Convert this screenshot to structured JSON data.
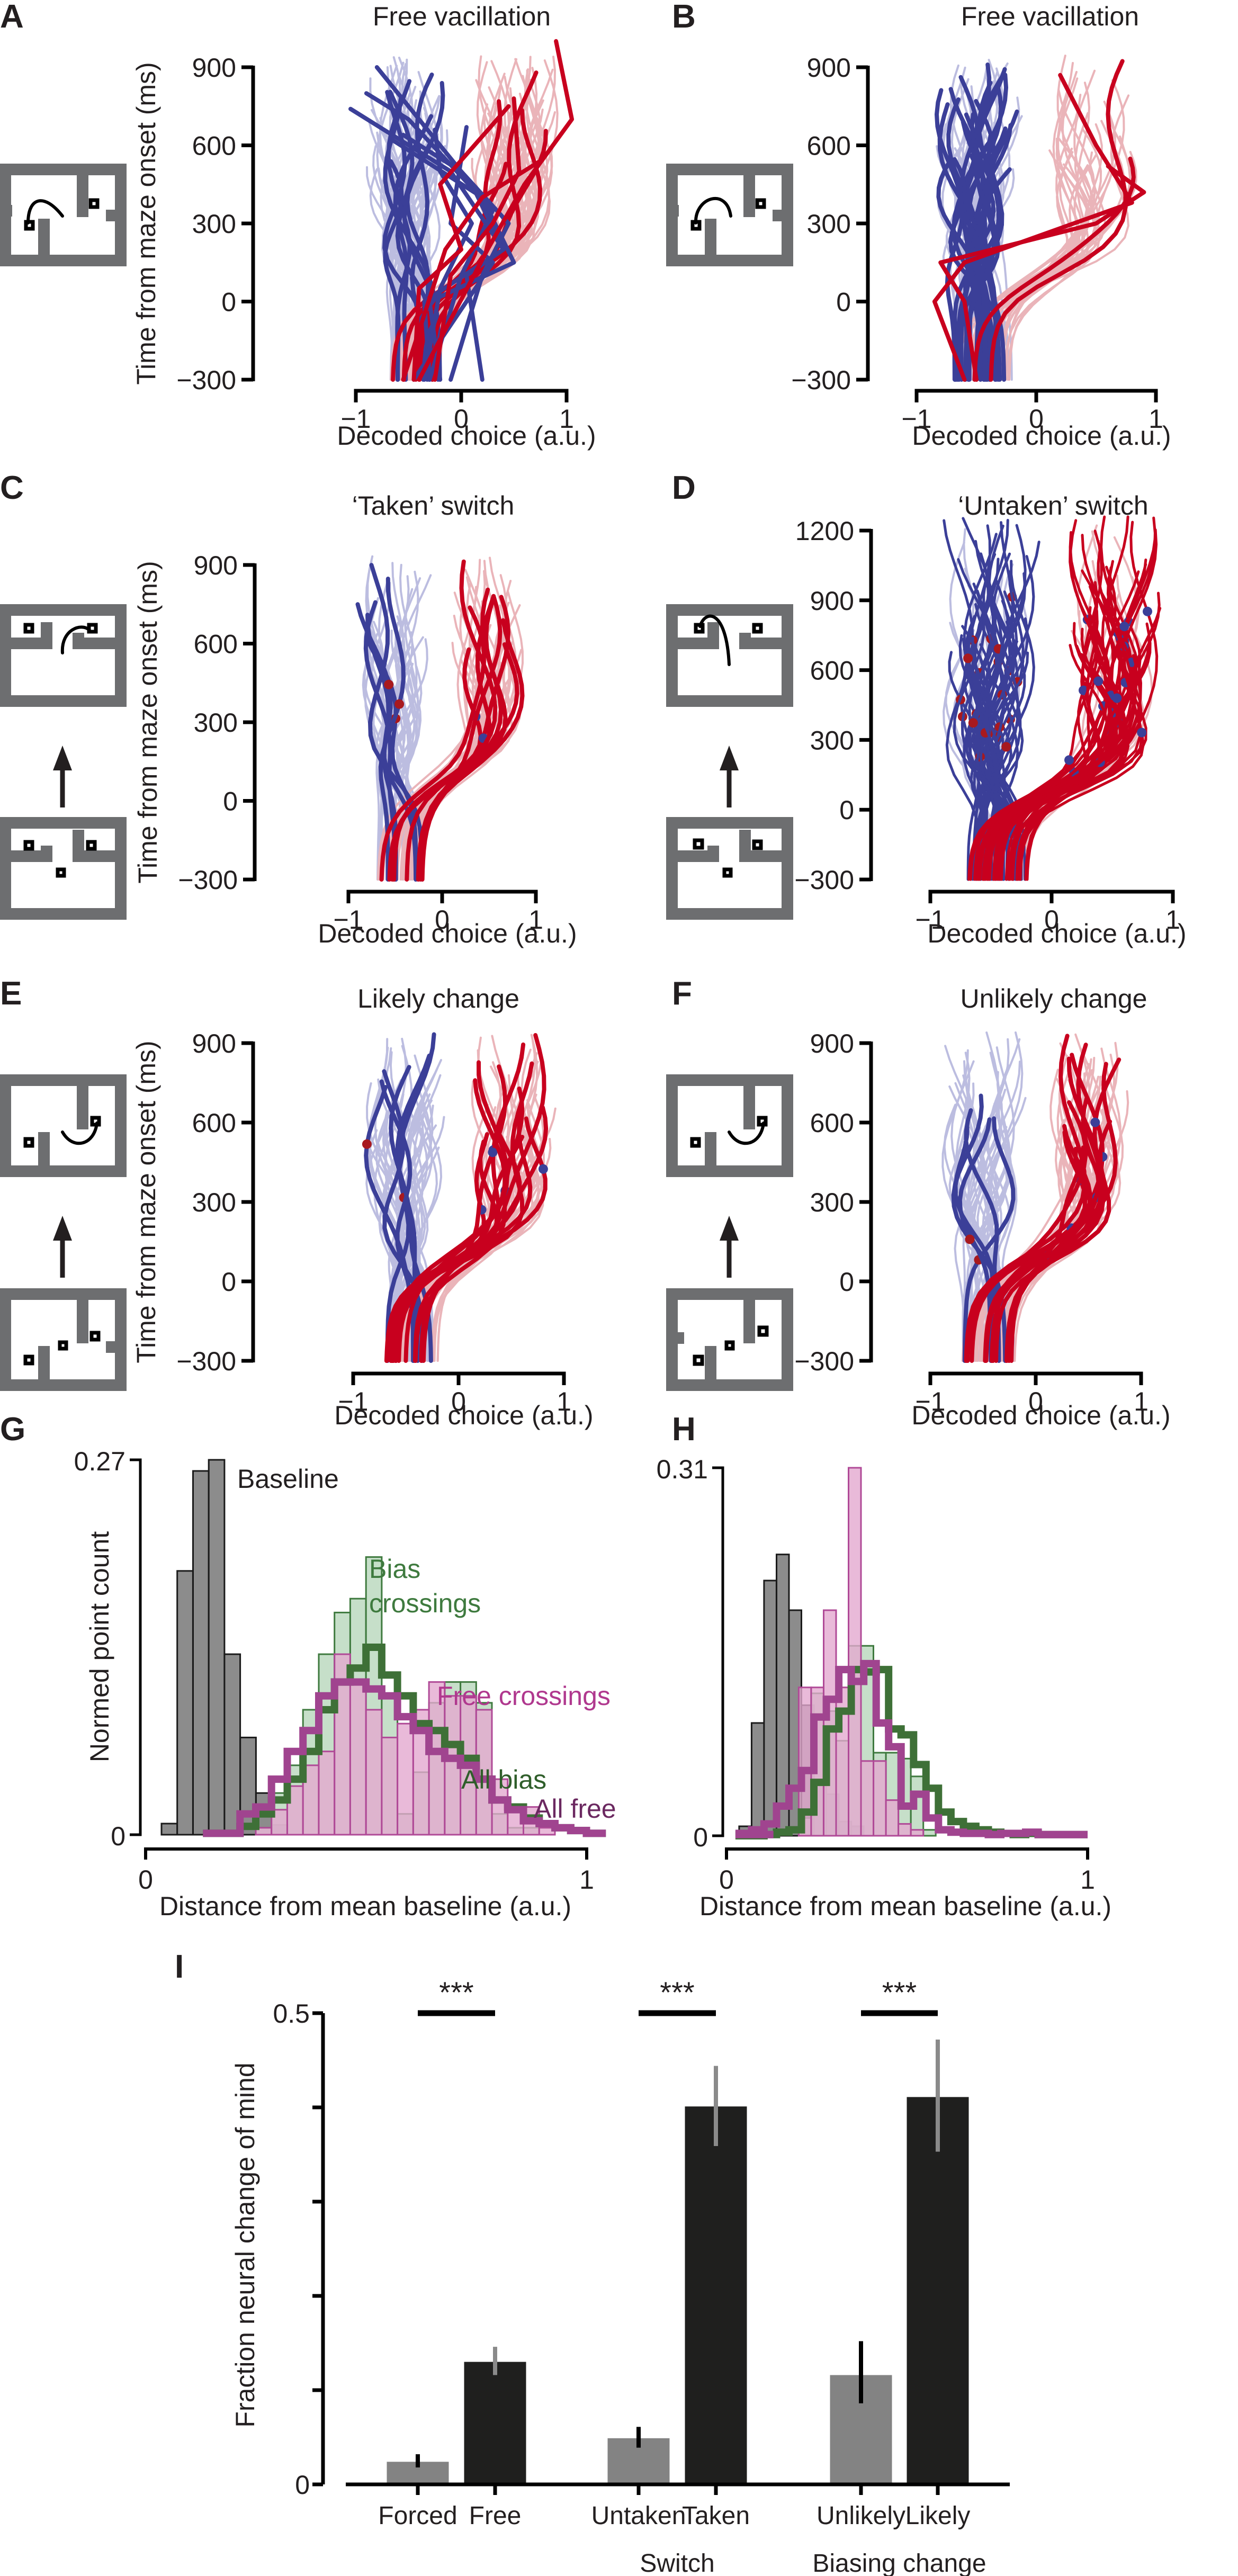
{
  "figure": {
    "colors": {
      "left_strong": "#3b3f98",
      "left_faint": "#bcbde0",
      "right_strong": "#c8001e",
      "right_faint": "#eab4b9",
      "crossing_dot_red": "#a8191e",
      "crossing_dot_blue": "#3b3f98",
      "baseline_fill": "#8c8c8c",
      "bias_fill": "#bcd9c0",
      "bias_edge": "#3f7a3f",
      "free_fill": "#e3a9cf",
      "free_edge": "#b04a97",
      "all_bias_line": "#3e7037",
      "all_free_line": "#a0448f",
      "all_free_label": "#6b2860",
      "bar_gray": "#838383",
      "bar_black": "#1f1f1e",
      "err_gray": "#8a8a8a",
      "err_black": "#000000"
    }
  },
  "chart_data": [
    {
      "id": "A",
      "type": "line",
      "panel_letter": "A",
      "title": "Free vacillation",
      "xlabel": "Decoded choice (a.u.)",
      "ylabel": "Time from maze onset (ms)",
      "xlim": [
        -1,
        1
      ],
      "ylim": [
        -300,
        900
      ],
      "xticks": [
        "−1",
        "0",
        "1"
      ],
      "yticks": [
        "900",
        "600",
        "300",
        "0",
        "−300"
      ],
      "maze": "free-vacillation-maze",
      "series_summary": {
        "faint_left_count": 60,
        "faint_right_count": 60,
        "strong_left_count": 9,
        "strong_right_count": 5
      },
      "highlight_traces": {
        "blue": [
          [
            [
              -0.3,
              -300
            ],
            [
              -0.35,
              0
            ],
            [
              0.4,
              200
            ],
            [
              0.1,
              450
            ],
            [
              -0.8,
              900
            ]
          ],
          [
            [
              -0.2,
              -300
            ],
            [
              -0.3,
              0
            ],
            [
              0.5,
              150
            ],
            [
              0.2,
              400
            ],
            [
              -0.65,
              620
            ]
          ],
          [
            [
              -0.1,
              -300
            ],
            [
              0.2,
              100
            ],
            [
              0.45,
              300
            ],
            [
              0.0,
              500
            ],
            [
              -0.55,
              640
            ]
          ],
          [
            [
              0.2,
              -300
            ],
            [
              0.05,
              100
            ],
            [
              0.4,
              200
            ],
            [
              -0.1,
              500
            ],
            [
              -1.05,
              740
            ]
          ],
          [
            [
              -0.35,
              -300
            ],
            [
              -0.2,
              50
            ],
            [
              0.1,
              300
            ],
            [
              -0.2,
              500
            ],
            [
              -0.25,
              660
            ]
          ],
          [
            [
              -0.45,
              -300
            ],
            [
              0.3,
              150
            ],
            [
              -0.1,
              300
            ],
            [
              0.05,
              670
            ]
          ],
          [
            [
              -0.3,
              -300
            ],
            [
              0.0,
              100
            ],
            [
              0.3,
              350
            ],
            [
              -0.5,
              700
            ],
            [
              -0.9,
              800
            ]
          ]
        ],
        "red": [
          [
            [
              -0.45,
              -300
            ],
            [
              -0.4,
              50
            ],
            [
              0.0,
              200
            ],
            [
              -0.2,
              450
            ],
            [
              0.45,
              750
            ]
          ],
          [
            [
              -0.25,
              -300
            ],
            [
              -0.1,
              100
            ],
            [
              0.3,
              300
            ],
            [
              0.55,
              500
            ],
            [
              0.5,
              780
            ]
          ],
          [
            [
              -0.55,
              -300
            ],
            [
              -0.15,
              200
            ],
            [
              0.2,
              400
            ],
            [
              0.75,
              540
            ]
          ],
          [
            [
              -0.4,
              -300
            ],
            [
              0.25,
              200
            ],
            [
              0.6,
              450
            ],
            [
              1.05,
              700
            ],
            [
              0.9,
              1000
            ]
          ]
        ]
      }
    },
    {
      "id": "B",
      "type": "line",
      "panel_letter": "B",
      "title": "Free vacillation",
      "xlabel": "Decoded choice (a.u.)",
      "ylabel": "",
      "xlim": [
        -1,
        1
      ],
      "ylim": [
        -300,
        900
      ],
      "xticks": [
        "−1",
        "0",
        "1"
      ],
      "yticks": [
        "900",
        "600",
        "300",
        "0",
        "−300"
      ],
      "maze": "free-vacillation-maze",
      "series_summary": {
        "faint_left_count": 40,
        "faint_right_count": 30,
        "strong_left_count": 24,
        "strong_right_count": 2
      },
      "highlight_traces": {
        "red": [
          [
            [
              -0.6,
              -300
            ],
            [
              -0.85,
              0
            ],
            [
              -0.6,
              150
            ],
            [
              0.8,
              380
            ],
            [
              0.5,
              600
            ],
            [
              0.2,
              870
            ]
          ],
          [
            [
              -0.5,
              -300
            ],
            [
              -0.6,
              0
            ],
            [
              -0.8,
              150
            ],
            [
              0.5,
              300
            ],
            [
              0.9,
              420
            ],
            [
              0.6,
              520
            ]
          ]
        ]
      }
    },
    {
      "id": "C",
      "type": "line",
      "panel_letter": "C",
      "title": "‘Taken’ switch",
      "xlabel": "Decoded choice (a.u.)",
      "ylabel": "Time from maze onset (ms)",
      "xlim": [
        -1,
        1
      ],
      "ylim": [
        -300,
        900
      ],
      "xticks": [
        "−1",
        "0",
        "1"
      ],
      "yticks": [
        "900",
        "600",
        "300",
        "0",
        "−300"
      ],
      "maze": "taken-switch-maze",
      "series_summary": {
        "faint_left_count": 35,
        "faint_right_count": 35,
        "strong_left_count": 6,
        "strong_right_count": 10
      }
    },
    {
      "id": "D",
      "type": "line",
      "panel_letter": "D",
      "title": "‘Untaken’ switch",
      "xlabel": "Decoded choice (a.u.)",
      "ylabel": "",
      "xlim": [
        -1,
        1
      ],
      "ylim": [
        -300,
        1200
      ],
      "xticks": [
        "−1",
        "0",
        "1"
      ],
      "yticks": [
        "1200",
        "900",
        "600",
        "300",
        "0",
        "−300"
      ],
      "maze": "untaken-switch-maze",
      "series_summary": {
        "faint_left_count": 10,
        "faint_right_count": 15,
        "strong_left_count": 45,
        "strong_right_count": 45
      }
    },
    {
      "id": "E",
      "type": "line",
      "panel_letter": "E",
      "title": "Likely change",
      "xlabel": "Decoded choice (a.u.)",
      "ylabel": "Time from maze onset (ms)",
      "xlim": [
        -1,
        1
      ],
      "ylim": [
        -300,
        900
      ],
      "xticks": [
        "−1",
        "0",
        "1"
      ],
      "yticks": [
        "900",
        "600",
        "300",
        "0",
        "−300"
      ],
      "maze": "likely-change-maze",
      "series_summary": {
        "faint_left_count": 40,
        "faint_right_count": 40,
        "strong_left_count": 6,
        "strong_right_count": 14
      }
    },
    {
      "id": "F",
      "type": "line",
      "panel_letter": "F",
      "title": "Unlikely change",
      "xlabel": "Decoded choice (a.u.)",
      "ylabel": "",
      "xlim": [
        -1,
        1
      ],
      "ylim": [
        -300,
        900
      ],
      "xticks": [
        "−1",
        "0",
        "1"
      ],
      "yticks": [
        "900",
        "600",
        "300",
        "0",
        "−300"
      ],
      "maze": "unlikely-change-maze",
      "series_summary": {
        "faint_left_count": 40,
        "faint_right_count": 40,
        "strong_left_count": 5,
        "strong_right_count": 14
      }
    },
    {
      "id": "G",
      "type": "bar",
      "subtype": "histogram",
      "panel_letter": "G",
      "xlabel": "Distance from mean baseline (a.u.)",
      "ylabel": "Normed point count",
      "xlim": [
        0,
        1
      ],
      "ylim": [
        0,
        0.27
      ],
      "xticks": [
        "0",
        "1"
      ],
      "yticks": [
        "0.27",
        "0"
      ],
      "bin_width": 0.0357,
      "series": [
        {
          "name": "Baseline",
          "style": "filled-gray",
          "start": 0.036,
          "values": [
            0.008,
            0.19,
            0.262,
            0.27,
            0.13,
            0.07,
            0.03,
            0.007
          ]
        },
        {
          "name": "Bias crossings",
          "style": "filled-green",
          "start": 0.214,
          "values": [
            0.0,
            0.005,
            0.03,
            0.05,
            0.09,
            0.13,
            0.16,
            0.17,
            0.2,
            0.1,
            0.015,
            0.045,
            0.095,
            0.11,
            0.11,
            0.095,
            0.015,
            0.005,
            0.005,
            0.0
          ]
        },
        {
          "name": "Free crossings",
          "style": "filled-pink",
          "start": 0.214,
          "values": [
            0.0,
            0.005,
            0.018,
            0.035,
            0.05,
            0.06,
            0.13,
            0.11,
            0.09,
            0.07,
            0.08,
            0.09,
            0.11,
            0.1,
            0.1,
            0.09,
            0.04,
            0.02,
            0.02,
            0.005
          ]
        },
        {
          "name": "All bias",
          "style": "step-green",
          "start": 0.214,
          "values": [
            0.006,
            0.015,
            0.025,
            0.04,
            0.06,
            0.09,
            0.11,
            0.12,
            0.135,
            0.115,
            0.1,
            0.08,
            0.075,
            0.065,
            0.055,
            0.04,
            0.025,
            0.02,
            0.012,
            0.008,
            0.005,
            0.003,
            0.001
          ]
        },
        {
          "name": "All free",
          "style": "step-magenta",
          "start": 0.214,
          "values": [
            0.015,
            0.02,
            0.04,
            0.06,
            0.075,
            0.1,
            0.11,
            0.11,
            0.105,
            0.1,
            0.085,
            0.075,
            0.06,
            0.055,
            0.05,
            0.04,
            0.025,
            0.018,
            0.01,
            0.008,
            0.005,
            0.003,
            0.001
          ]
        }
      ],
      "annotations": [
        "Baseline",
        "Bias",
        "crossings",
        "Free crossings",
        "All bias",
        "All free"
      ]
    },
    {
      "id": "H",
      "type": "bar",
      "subtype": "histogram",
      "panel_letter": "H",
      "xlabel": "Distance from mean baseline (a.u.)",
      "ylabel": "",
      "xlim": [
        0,
        1
      ],
      "ylim": [
        0,
        0.31
      ],
      "xticks": [
        "0",
        "1"
      ],
      "yticks": [
        "0.31",
        "0"
      ],
      "bin_width": 0.0345,
      "series": [
        {
          "name": "Baseline",
          "style": "filled-gray",
          "start": 0.035,
          "values": [
            0.008,
            0.095,
            0.215,
            0.237,
            0.19,
            0.11,
            0.045,
            0.035,
            0.012,
            0.008
          ]
        },
        {
          "name": "Bias crossings",
          "style": "filled-green",
          "start": 0.2,
          "values": [
            0.015,
            0.12,
            0.105,
            0.08,
            0.16,
            0.16,
            0.07,
            0.07,
            0.065,
            0.05,
            0.005
          ]
        },
        {
          "name": "Free crossings",
          "style": "filled-pink",
          "start": 0.2,
          "values": [
            0.125,
            0.125,
            0.19,
            0.125,
            0.31,
            0.063,
            0.063,
            0.03,
            0.01,
            0.005
          ]
        },
        {
          "name": "All bias",
          "style": "step-green",
          "start": 0.035,
          "values": [
            0.0,
            0.0,
            0.001,
            0.003,
            0.005,
            0.02,
            0.045,
            0.09,
            0.105,
            0.14,
            0.138,
            0.14,
            0.09,
            0.085,
            0.06,
            0.04,
            0.02,
            0.012,
            0.008,
            0.005,
            0.003,
            0.002,
            0.001,
            0.002
          ]
        },
        {
          "name": "All free",
          "style": "step-magenta",
          "start": 0.035,
          "values": [
            0.002,
            0.005,
            0.01,
            0.025,
            0.04,
            0.055,
            0.1,
            0.115,
            0.14,
            0.13,
            0.145,
            0.095,
            0.075,
            0.025,
            0.035,
            0.015,
            0.005,
            0.003,
            0.002,
            0.002,
            0.001,
            0.002,
            0.002,
            0.003
          ]
        }
      ]
    },
    {
      "id": "I",
      "type": "bar",
      "panel_letter": "I",
      "ylabel": "Fraction neural change of mind",
      "ylim": [
        0,
        0.5
      ],
      "yticks": [
        "0.5",
        "0"
      ],
      "ytick_values": [
        0,
        0.1,
        0.2,
        0.3,
        0.4,
        0.5
      ],
      "categories": [
        "Forced",
        "Free",
        "Untaken",
        "Taken",
        "Unlikely",
        "Likely"
      ],
      "group_labels": [
        "",
        "Switch",
        "Biasing change"
      ],
      "values": [
        0.024,
        0.13,
        0.049,
        0.401,
        0.116,
        0.411
      ],
      "error_low": [
        0.018,
        0.116,
        0.039,
        0.359,
        0.086,
        0.353
      ],
      "error_high": [
        0.032,
        0.146,
        0.061,
        0.444,
        0.152,
        0.472
      ],
      "bar_colors": [
        "gray",
        "black",
        "gray",
        "black",
        "gray",
        "black"
      ],
      "significance": [
        {
          "pair": [
            "Forced",
            "Free"
          ],
          "label": "***"
        },
        {
          "pair": [
            "Untaken",
            "Taken"
          ],
          "label": "***"
        },
        {
          "pair": [
            "Unlikely",
            "Likely"
          ],
          "label": "***"
        }
      ]
    }
  ]
}
